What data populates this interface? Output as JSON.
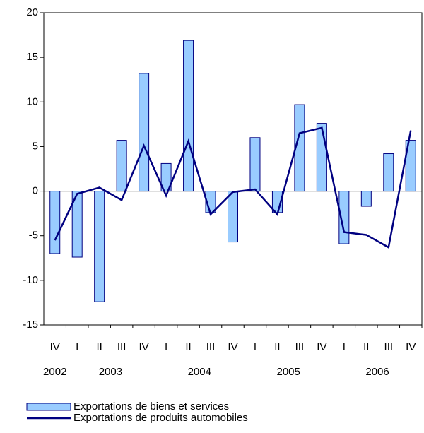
{
  "chart_data": {
    "type": "bar_line",
    "categories": [
      "IV",
      "I",
      "II",
      "III",
      "IV",
      "I",
      "II",
      "III",
      "IV",
      "I",
      "II",
      "III",
      "IV",
      "I",
      "II",
      "III",
      "IV"
    ],
    "years": [
      "2002",
      "2003",
      "2004",
      "2005",
      "2006"
    ],
    "series": [
      {
        "name": "Exportations de biens et services",
        "type": "bar",
        "color": "#99ccff",
        "edge": "#000080",
        "values": [
          -7.0,
          -7.4,
          -12.4,
          5.7,
          13.2,
          3.1,
          16.9,
          -2.4,
          -5.7,
          6.0,
          -2.4,
          9.7,
          7.6,
          -5.9,
          -1.7,
          4.2,
          5.7
        ]
      },
      {
        "name": "Exportations de produits automobiles",
        "type": "line",
        "color": "#000080",
        "values": [
          -5.5,
          -0.3,
          0.4,
          -1.0,
          5.1,
          -0.5,
          5.6,
          -2.6,
          -0.1,
          0.2,
          -2.6,
          6.5,
          7.1,
          -4.6,
          -4.9,
          -6.3,
          6.8
        ]
      }
    ],
    "ylim": [
      -15,
      20
    ],
    "yticks": [
      -15,
      -10,
      -5,
      0,
      5,
      10,
      15,
      20
    ],
    "grid": false
  }
}
